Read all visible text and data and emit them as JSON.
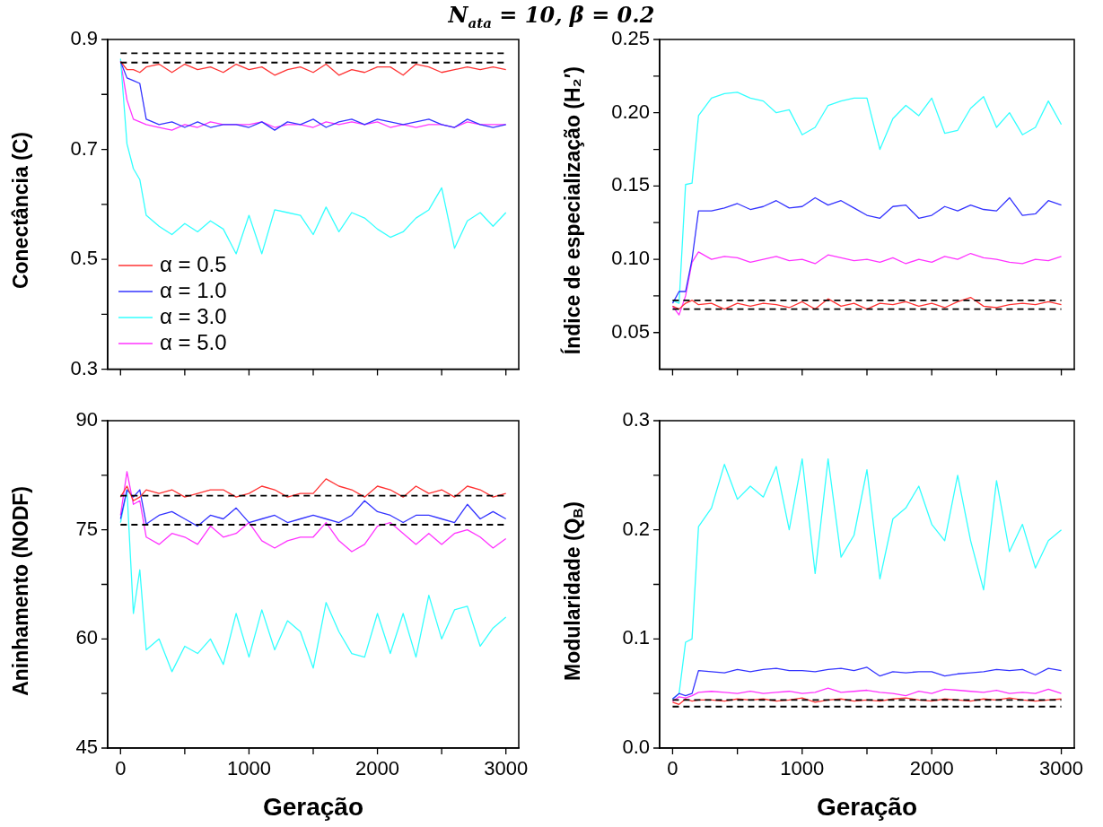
{
  "chart_data": [
    {
      "type": "line",
      "title": "N$_{ata}$ = 10, β = 0.2",
      "ylabel": "Conectância (C)",
      "x": [
        0,
        50,
        100,
        150,
        200,
        300,
        400,
        500,
        600,
        700,
        800,
        900,
        1000,
        1100,
        1200,
        1300,
        1400,
        1500,
        1600,
        1700,
        1800,
        1900,
        2000,
        2100,
        2200,
        2300,
        2400,
        2500,
        2600,
        2700,
        2800,
        2900,
        3000
      ],
      "xlim": [
        -100,
        3100
      ],
      "xticks": [
        0,
        {
          "value": 500,
          "label": null
        },
        {
          "value": 1000,
          "label": null
        },
        {
          "value": 1500,
          "label": null
        },
        {
          "value": 2000,
          "label": null
        },
        {
          "value": 2500,
          "label": null
        },
        {
          "value": 3000,
          "label": null
        }
      ],
      "ylim": [
        0.3,
        0.9
      ],
      "yticks": [
        0.3,
        {
          "value": 0.4,
          "label": null
        },
        0.5,
        {
          "value": 0.6,
          "label": null
        },
        0.7,
        {
          "value": 0.8,
          "label": null
        },
        0.9
      ],
      "tick_labels": "y",
      "grid": false,
      "legend": "bottom left",
      "marker": "none",
      "line_style": "solid",
      "ref_lines": [
        {
          "axis": "y",
          "value": 0.875,
          "color": "#000000",
          "line_style": "dashed"
        },
        {
          "axis": "y",
          "value": 0.858,
          "color": "#000000",
          "line_style": "dashed"
        }
      ],
      "series": [
        {
          "name": "α = 0.5",
          "color": "#ff3333",
          "values": [
            0.86,
            0.845,
            0.845,
            0.84,
            0.85,
            0.855,
            0.84,
            0.855,
            0.845,
            0.85,
            0.84,
            0.855,
            0.845,
            0.85,
            0.835,
            0.845,
            0.85,
            0.84,
            0.855,
            0.835,
            0.845,
            0.84,
            0.85,
            0.85,
            0.835,
            0.855,
            0.85,
            0.84,
            0.845,
            0.85,
            0.845,
            0.85,
            0.845
          ]
        },
        {
          "name": "α = 1.0",
          "color": "#3333ff",
          "values": [
            0.86,
            0.83,
            0.825,
            0.82,
            0.755,
            0.745,
            0.75,
            0.74,
            0.75,
            0.74,
            0.745,
            0.745,
            0.74,
            0.75,
            0.735,
            0.75,
            0.745,
            0.755,
            0.74,
            0.75,
            0.755,
            0.745,
            0.755,
            0.75,
            0.745,
            0.75,
            0.755,
            0.745,
            0.74,
            0.755,
            0.745,
            0.74,
            0.745
          ]
        },
        {
          "name": "α = 3.0",
          "color": "#33ffff",
          "values": [
            0.865,
            0.71,
            0.665,
            0.645,
            0.58,
            0.56,
            0.545,
            0.565,
            0.55,
            0.57,
            0.555,
            0.51,
            0.58,
            0.51,
            0.59,
            0.585,
            0.58,
            0.545,
            0.595,
            0.55,
            0.585,
            0.575,
            0.555,
            0.54,
            0.55,
            0.575,
            0.59,
            0.63,
            0.52,
            0.57,
            0.585,
            0.56,
            0.585
          ]
        },
        {
          "name": "α = 5.0",
          "color": "#ff33ff",
          "values": [
            0.86,
            0.79,
            0.755,
            0.75,
            0.745,
            0.74,
            0.735,
            0.745,
            0.74,
            0.75,
            0.745,
            0.745,
            0.745,
            0.75,
            0.74,
            0.745,
            0.745,
            0.74,
            0.75,
            0.745,
            0.75,
            0.745,
            0.75,
            0.74,
            0.745,
            0.74,
            0.745,
            0.745,
            0.74,
            0.75,
            0.745,
            0.745,
            0.745
          ]
        }
      ]
    },
    {
      "type": "line",
      "ylabel": "Índice de especialização (H₂′)",
      "x": [
        0,
        50,
        100,
        150,
        200,
        300,
        400,
        500,
        600,
        700,
        800,
        900,
        1000,
        1100,
        1200,
        1300,
        1400,
        1500,
        1600,
        1700,
        1800,
        1900,
        2000,
        2100,
        2200,
        2300,
        2400,
        2500,
        2600,
        2700,
        2800,
        2900,
        3000
      ],
      "xlim": [
        -100,
        3100
      ],
      "xticks": [
        0,
        {
          "value": 500,
          "label": null
        },
        {
          "value": 1000,
          "label": null
        },
        {
          "value": 1500,
          "label": null
        },
        {
          "value": 2000,
          "label": null
        },
        {
          "value": 2500,
          "label": null
        },
        {
          "value": 3000,
          "label": null
        }
      ],
      "ylim": [
        0.025,
        0.25
      ],
      "yticks": [
        0.05,
        {
          "value": 0.075,
          "label": null
        },
        {
          "value": 0.1,
          "label": "0.10"
        },
        {
          "value": 0.125,
          "label": null
        },
        0.15,
        {
          "value": 0.175,
          "label": null
        },
        {
          "value": 0.2,
          "label": "0.20"
        },
        {
          "value": 0.225,
          "label": null
        },
        0.25
      ],
      "tick_labels": "y",
      "grid": false,
      "marker": "none",
      "line_style": "solid",
      "ref_lines": [
        {
          "axis": "y",
          "value": 0.072,
          "color": "#000000",
          "line_style": "dashed"
        },
        {
          "axis": "y",
          "value": 0.066,
          "color": "#000000",
          "line_style": "dashed"
        }
      ],
      "series": [
        {
          "color": "#ff3333",
          "values": [
            0.068,
            0.066,
            0.07,
            0.072,
            0.069,
            0.07,
            0.066,
            0.07,
            0.068,
            0.07,
            0.069,
            0.067,
            0.071,
            0.066,
            0.073,
            0.068,
            0.07,
            0.066,
            0.07,
            0.069,
            0.071,
            0.068,
            0.07,
            0.067,
            0.071,
            0.074,
            0.068,
            0.067,
            0.069,
            0.07,
            0.069,
            0.071,
            0.069
          ]
        },
        {
          "color": "#3333ff",
          "values": [
            0.07,
            0.078,
            0.078,
            0.1,
            0.133,
            0.133,
            0.135,
            0.138,
            0.134,
            0.136,
            0.14,
            0.135,
            0.136,
            0.142,
            0.137,
            0.14,
            0.135,
            0.13,
            0.128,
            0.136,
            0.137,
            0.128,
            0.13,
            0.136,
            0.133,
            0.137,
            0.134,
            0.133,
            0.142,
            0.13,
            0.131,
            0.14,
            0.137
          ]
        },
        {
          "color": "#33ffff",
          "values": [
            0.072,
            0.07,
            0.151,
            0.152,
            0.198,
            0.21,
            0.213,
            0.214,
            0.21,
            0.208,
            0.2,
            0.202,
            0.185,
            0.19,
            0.205,
            0.208,
            0.21,
            0.21,
            0.175,
            0.196,
            0.205,
            0.198,
            0.21,
            0.186,
            0.188,
            0.203,
            0.211,
            0.19,
            0.2,
            0.185,
            0.19,
            0.208,
            0.192
          ]
        },
        {
          "color": "#ff33ff",
          "values": [
            0.068,
            0.062,
            0.075,
            0.098,
            0.105,
            0.1,
            0.102,
            0.101,
            0.098,
            0.1,
            0.102,
            0.099,
            0.1,
            0.097,
            0.103,
            0.101,
            0.099,
            0.1,
            0.098,
            0.101,
            0.097,
            0.1,
            0.098,
            0.102,
            0.1,
            0.104,
            0.101,
            0.1,
            0.098,
            0.097,
            0.1,
            0.099,
            0.102
          ]
        }
      ]
    },
    {
      "type": "line",
      "xlabel": "Geração",
      "ylabel": "Aninhamento (NODF)",
      "x": [
        0,
        50,
        100,
        150,
        200,
        300,
        400,
        500,
        600,
        700,
        800,
        900,
        1000,
        1100,
        1200,
        1300,
        1400,
        1500,
        1600,
        1700,
        1800,
        1900,
        2000,
        2100,
        2200,
        2300,
        2400,
        2500,
        2600,
        2700,
        2800,
        2900,
        3000
      ],
      "xlim": [
        -100,
        3100
      ],
      "xticks": [
        0,
        {
          "value": 500,
          "label": null
        },
        1000,
        {
          "value": 1500,
          "label": null
        },
        2000,
        {
          "value": 2500,
          "label": null
        },
        3000
      ],
      "ylim": [
        45,
        90
      ],
      "yticks": [
        45,
        {
          "value": 52.5,
          "label": null
        },
        60,
        {
          "value": 67.5,
          "label": null
        },
        75,
        {
          "value": 82.5,
          "label": null
        },
        90
      ],
      "grid": false,
      "marker": "none",
      "line_style": "solid",
      "ref_lines": [
        {
          "axis": "y",
          "value": 79.7,
          "color": "#000000",
          "line_style": "dashed"
        },
        {
          "axis": "y",
          "value": 75.7,
          "color": "#000000",
          "line_style": "dashed"
        }
      ],
      "series": [
        {
          "color": "#ff3333",
          "values": [
            79.5,
            81,
            79,
            79.5,
            80.5,
            80,
            80.5,
            79.5,
            80,
            80.5,
            80.5,
            79.5,
            80,
            81,
            80.5,
            79.5,
            80,
            80,
            82,
            81,
            80.5,
            79.5,
            81,
            80.5,
            79.5,
            81,
            80,
            80.5,
            79.5,
            81,
            80.5,
            79.5,
            80
          ]
        },
        {
          "color": "#3333ff",
          "values": [
            76.5,
            80.5,
            79.5,
            80.5,
            75.8,
            77,
            77.5,
            76.5,
            75.5,
            77,
            76.5,
            78,
            76,
            76.5,
            77,
            76,
            76.5,
            77,
            76.5,
            76,
            77,
            79,
            77.5,
            77,
            76,
            77,
            77,
            76.5,
            76,
            78.5,
            76.5,
            77.5,
            76.5
          ]
        },
        {
          "color": "#33ffff",
          "values": [
            76,
            80.5,
            63.5,
            69.5,
            58.5,
            60,
            55.5,
            59,
            58,
            60,
            56.5,
            63.5,
            57.5,
            64,
            58.5,
            62.5,
            61,
            56,
            65,
            61,
            58,
            57.5,
            63.5,
            58,
            63.5,
            57.5,
            66,
            60,
            64,
            64.5,
            59,
            61.5,
            63
          ]
        },
        {
          "color": "#ff33ff",
          "values": [
            77,
            83,
            78.5,
            79,
            74,
            73,
            74.5,
            74,
            73,
            75.5,
            74,
            74.5,
            76,
            73.5,
            72.5,
            73.5,
            74,
            74,
            76,
            73.5,
            72,
            73,
            75.5,
            76,
            74.5,
            73,
            74.5,
            73,
            74.5,
            75,
            74,
            72.5,
            73.8
          ]
        }
      ]
    },
    {
      "type": "line",
      "xlabel": "Geração",
      "ylabel": "Modularidade (Q$_{B}$)",
      "x": [
        0,
        50,
        100,
        150,
        200,
        300,
        400,
        500,
        600,
        700,
        800,
        900,
        1000,
        1100,
        1200,
        1300,
        1400,
        1500,
        1600,
        1700,
        1800,
        1900,
        2000,
        2100,
        2200,
        2300,
        2400,
        2500,
        2600,
        2700,
        2800,
        2900,
        3000
      ],
      "xlim": [
        -100,
        3100
      ],
      "xticks": [
        0,
        {
          "value": 500,
          "label": null
        },
        1000,
        {
          "value": 1500,
          "label": null
        },
        2000,
        {
          "value": 2500,
          "label": null
        },
        3000
      ],
      "ylim": [
        0,
        0.3
      ],
      "yticks": [
        {
          "value": 0,
          "label": "0.0"
        },
        {
          "value": 0.05,
          "label": null
        },
        0.1,
        {
          "value": 0.15,
          "label": null
        },
        0.2,
        {
          "value": 0.25,
          "label": null
        },
        0.3
      ],
      "grid": false,
      "marker": "none",
      "line_style": "solid",
      "ref_lines": [
        {
          "axis": "y",
          "value": 0.044,
          "color": "#000000",
          "line_style": "dashed"
        },
        {
          "axis": "y",
          "value": 0.038,
          "color": "#000000",
          "line_style": "dashed"
        }
      ],
      "series": [
        {
          "color": "#ff3333",
          "values": [
            0.042,
            0.04,
            0.045,
            0.043,
            0.044,
            0.044,
            0.043,
            0.045,
            0.044,
            0.045,
            0.043,
            0.044,
            0.046,
            0.042,
            0.044,
            0.045,
            0.043,
            0.044,
            0.043,
            0.045,
            0.046,
            0.044,
            0.043,
            0.045,
            0.044,
            0.043,
            0.045,
            0.044,
            0.046,
            0.044,
            0.043,
            0.044,
            0.045
          ]
        },
        {
          "color": "#3333ff",
          "values": [
            0.045,
            0.05,
            0.048,
            0.05,
            0.071,
            0.07,
            0.069,
            0.072,
            0.07,
            0.072,
            0.073,
            0.071,
            0.071,
            0.07,
            0.072,
            0.073,
            0.071,
            0.074,
            0.066,
            0.07,
            0.069,
            0.07,
            0.07,
            0.066,
            0.068,
            0.069,
            0.07,
            0.072,
            0.071,
            0.072,
            0.067,
            0.073,
            0.071
          ]
        },
        {
          "color": "#33ffff",
          "values": [
            0.045,
            0.05,
            0.097,
            0.1,
            0.203,
            0.22,
            0.26,
            0.228,
            0.24,
            0.23,
            0.258,
            0.2,
            0.265,
            0.16,
            0.265,
            0.175,
            0.195,
            0.255,
            0.155,
            0.21,
            0.22,
            0.24,
            0.205,
            0.19,
            0.25,
            0.19,
            0.145,
            0.245,
            0.18,
            0.205,
            0.165,
            0.19,
            0.2
          ]
        },
        {
          "color": "#ff33ff",
          "values": [
            0.043,
            0.047,
            0.046,
            0.048,
            0.051,
            0.052,
            0.051,
            0.05,
            0.052,
            0.05,
            0.051,
            0.052,
            0.05,
            0.051,
            0.055,
            0.051,
            0.052,
            0.053,
            0.051,
            0.05,
            0.048,
            0.052,
            0.05,
            0.054,
            0.053,
            0.052,
            0.051,
            0.053,
            0.05,
            0.051,
            0.05,
            0.054,
            0.05
          ]
        }
      ]
    }
  ]
}
